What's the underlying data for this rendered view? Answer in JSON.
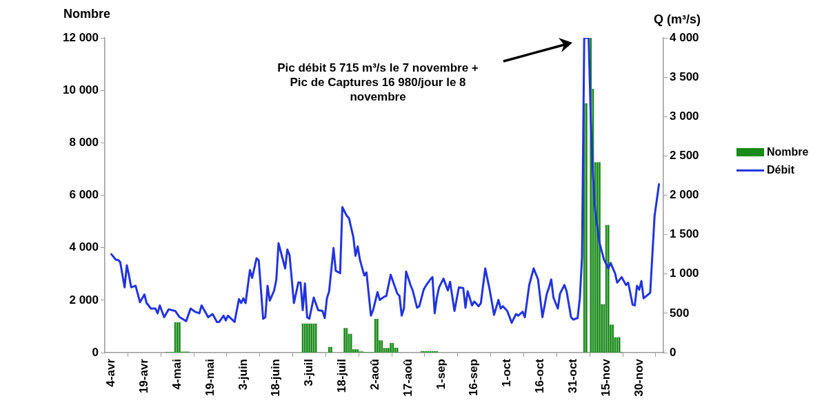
{
  "chart_data": {
    "type": "bar",
    "ylabel": "Nombre",
    "y2label": "Q (m³/s)",
    "legend": "right",
    "annotations": [
      "Pic débit 5 715 m³/s le 7 novembre + Pic de Captures 16 980/jour le 8 novembre"
    ],
    "xlim": [
      "--04-01",
      "--12-11"
    ],
    "xticks": [
      {
        "value": "--04-04",
        "label": "4-avr"
      },
      {
        "value": "--04-19",
        "label": "19-avr"
      },
      {
        "value": "--05-04",
        "label": "4-mai"
      },
      {
        "value": "--05-19",
        "label": "19-mai"
      },
      {
        "value": "--06-03",
        "label": "3-juin"
      },
      {
        "value": "--06-18",
        "label": "18-juin"
      },
      {
        "value": "--07-03",
        "label": "3-juil"
      },
      {
        "value": "--07-18",
        "label": "18-juil"
      },
      {
        "value": "--08-02",
        "label": "2-aoû"
      },
      {
        "value": "--08-17",
        "label": "17-aoû"
      },
      {
        "value": "--09-01",
        "label": "1-sep"
      },
      {
        "value": "--09-16",
        "label": "16-sep"
      },
      {
        "value": "--10-01",
        "label": "1-oct"
      },
      {
        "value": "--10-16",
        "label": "16-oct"
      },
      {
        "value": "--10-31",
        "label": "31-oct"
      },
      {
        "value": "--11-15",
        "label": "15-nov"
      },
      {
        "value": "--11-30",
        "label": "30-nov"
      }
    ],
    "ylim": [
      0,
      12000
    ],
    "yticks": [
      0,
      {
        "value": 2000,
        "label": "2 000"
      },
      {
        "value": 4000,
        "label": "4 000"
      },
      {
        "value": 6000,
        "label": "6 000"
      },
      {
        "value": 8000,
        "label": "8 000"
      },
      {
        "value": 10000,
        "label": "10 000"
      },
      {
        "value": 12000,
        "label": "12 000"
      }
    ],
    "y2lim": [
      0,
      4000
    ],
    "y2ticks": [
      0,
      500,
      {
        "value": 1000,
        "label": "1 000"
      },
      {
        "value": 1500,
        "label": "1 500"
      },
      {
        "value": 2000,
        "label": "2 000"
      },
      {
        "value": 2500,
        "label": "2 500"
      },
      {
        "value": 3000,
        "label": "3 000"
      },
      {
        "value": 3500,
        "label": "3 500"
      },
      {
        "value": 4000,
        "label": "4 000"
      }
    ],
    "series": [
      {
        "name": "Nombre",
        "color": "#1a8a1a",
        "x": [
          "--04-29",
          "--04-30",
          "--05-01",
          "--05-02",
          "--05-03",
          "--05-04",
          "--05-05",
          "--05-06",
          "--05-07",
          "--05-08",
          "--05-09",
          "--06-30",
          "--07-01",
          "--07-02",
          "--07-03",
          "--07-04",
          "--07-05",
          "--07-06",
          "--07-12",
          "--07-13",
          "--07-19",
          "--07-20",
          "--07-21",
          "--07-22",
          "--07-23",
          "--07-24",
          "--07-25",
          "--07-26",
          "--07-27",
          "--07-28",
          "--07-29",
          "--07-30",
          "--07-31",
          "--08-01",
          "--08-02",
          "--08-03",
          "--08-04",
          "--08-05",
          "--08-06",
          "--08-07",
          "--08-08",
          "--08-09",
          "--08-10",
          "--08-11",
          "--08-12",
          "--08-23",
          "--08-24",
          "--08-25",
          "--08-26",
          "--08-27",
          "--08-28",
          "--08-29",
          "--08-30",
          "--11-05",
          "--11-06",
          "--11-08",
          "--11-09",
          "--11-10",
          "--11-11",
          "--11-12",
          "--11-13",
          "--11-14",
          "--11-15",
          "--11-16",
          "--11-17",
          "--11-18",
          "--11-19",
          "--11-20",
          "--11-21",
          "--11-22"
        ],
        "values": [
          20,
          20,
          20,
          20,
          1150,
          1150,
          1150,
          30,
          30,
          30,
          30,
          1100,
          1100,
          1100,
          1100,
          1100,
          1100,
          1100,
          210,
          210,
          930,
          930,
          710,
          710,
          120,
          120,
          120,
          40,
          40,
          10,
          10,
          10,
          10,
          10,
          1280,
          1280,
          460,
          460,
          170,
          170,
          170,
          360,
          360,
          180,
          180,
          50,
          50,
          50,
          50,
          50,
          50,
          50,
          50,
          9500,
          9500,
          12000,
          10050,
          7250,
          7250,
          7250,
          1840,
          1840,
          4860,
          4860,
          1060,
          1060,
          580,
          580,
          580,
          20
        ]
      },
      {
        "name": "Débit",
        "type": "line",
        "axis": "y2",
        "color": "#2233dd",
        "x": [
          "--04-04",
          "--04-06",
          "--04-07",
          "--04-08",
          "--04-10",
          "--04-11",
          "--04-12",
          "--04-13",
          "--04-15",
          "--04-17",
          "--04-19",
          "--04-20",
          "--04-22",
          "--04-24",
          "--04-25",
          "--04-26",
          "--04-28",
          "--04-30",
          "--05-03",
          "--05-05",
          "--05-08",
          "--05-10",
          "--05-12",
          "--05-14",
          "--05-15",
          "--05-18",
          "--05-20",
          "--05-22",
          "--05-23",
          "--05-25",
          "--05-26",
          "--05-27",
          "--05-30",
          "--06-01",
          "--06-02",
          "--06-03",
          "--06-04",
          "--06-06",
          "--06-07",
          "--06-09",
          "--06-10",
          "--06-12",
          "--06-13",
          "--06-14",
          "--06-15",
          "--06-17",
          "--06-18",
          "--06-19",
          "--06-22",
          "--06-23",
          "--06-24",
          "--06-26",
          "--06-28",
          "--06-29",
          "--06-30",
          "--07-01",
          "--07-02",
          "--07-03",
          "--07-05",
          "--07-07",
          "--07-09",
          "--07-10",
          "--07-11",
          "--07-12",
          "--07-14",
          "--07-15",
          "--07-17",
          "--07-18",
          "--07-20",
          "--07-21",
          "--07-23",
          "--07-24",
          "--07-25",
          "--07-26",
          "--07-28",
          "--07-29",
          "--07-31",
          "--08-01",
          "--08-03",
          "--08-04",
          "--08-06",
          "--08-07",
          "--08-09",
          "--08-12",
          "--08-13",
          "--08-14",
          "--08-15",
          "--08-16",
          "--08-18",
          "--08-19",
          "--08-21",
          "--08-22",
          "--08-24",
          "--08-25",
          "--08-27",
          "--08-28",
          "--08-29",
          "--08-30",
          "--08-31",
          "--09-02",
          "--09-04",
          "--09-05",
          "--09-07",
          "--09-09",
          "--09-11",
          "--09-12",
          "--09-13",
          "--09-15",
          "--09-16",
          "--09-18",
          "--09-19",
          "--09-21",
          "--09-23",
          "--09-25",
          "--09-27",
          "--09-28",
          "--09-29",
          "--10-01",
          "--10-03",
          "--10-05",
          "--10-06",
          "--10-08",
          "--10-09",
          "--10-11",
          "--10-13",
          "--10-15",
          "--10-17",
          "--10-19",
          "--10-20",
          "--10-21",
          "--10-22",
          "--10-24",
          "--10-25",
          "--10-27",
          "--10-28",
          "--10-30",
          "--10-31",
          "--11-02",
          "--11-03",
          "--11-04",
          "--11-05",
          "--11-07",
          "--11-08",
          "--11-09",
          "--11-10",
          "--11-12",
          "--11-14",
          "--11-16",
          "--11-17",
          "--11-19",
          "--11-20",
          "--11-22",
          "--11-24",
          "--11-25",
          "--11-27",
          "--11-28",
          "--11-29",
          "--11-30",
          "--12-01",
          "--12-02",
          "--12-05",
          "--12-07",
          "--12-09"
        ],
        "values": [
          1250,
          1180,
          1180,
          1150,
          830,
          1110,
          980,
          830,
          850,
          640,
          740,
          630,
          560,
          560,
          500,
          600,
          450,
          550,
          530,
          450,
          400,
          560,
          520,
          500,
          600,
          450,
          490,
          390,
          390,
          470,
          410,
          470,
          390,
          680,
          630,
          690,
          630,
          1050,
          950,
          1200,
          1170,
          430,
          450,
          850,
          660,
          790,
          930,
          1390,
          1070,
          1310,
          1240,
          630,
          890,
          890,
          540,
          880,
          450,
          430,
          700,
          540,
          530,
          440,
          690,
          780,
          1330,
          1040,
          1010,
          1850,
          1740,
          1710,
          1470,
          1230,
          1350,
          1180,
          980,
          1020,
          470,
          540,
          770,
          670,
          710,
          720,
          990,
          750,
          720,
          470,
          560,
          1030,
          860,
          790,
          570,
          590,
          800,
          850,
          930,
          960,
          500,
          700,
          830,
          940,
          790,
          900,
          530,
          830,
          820,
          570,
          780,
          600,
          650,
          590,
          630,
          1070,
          800,
          480,
          670,
          560,
          590,
          530,
          380,
          490,
          470,
          520,
          450,
          860,
          1070,
          930,
          450,
          750,
          830,
          930,
          700,
          560,
          750,
          860,
          780,
          450,
          420,
          440,
          690,
          1210,
          4000,
          4000,
          2960,
          2230,
          1790,
          1390,
          1180,
          1070,
          1140,
          1010,
          890,
          960,
          860,
          890,
          610,
          600,
          850,
          800,
          910,
          690,
          760,
          1740,
          2140
        ]
      }
    ]
  }
}
